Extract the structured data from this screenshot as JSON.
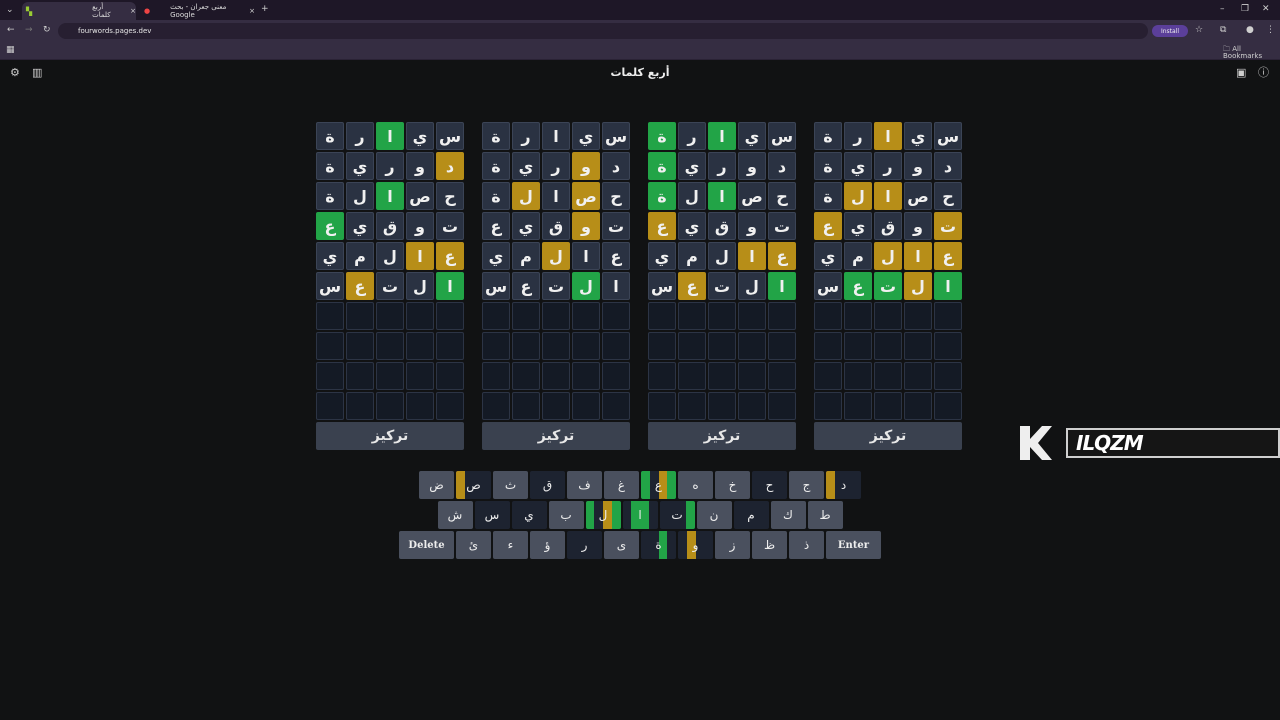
{
  "browser": {
    "tabs": [
      {
        "title": "أربع كلمات",
        "active": true
      },
      {
        "title": "معنى جعران - بحث Google",
        "active": false
      }
    ],
    "url": "fourwords.pages.dev",
    "install_label": "Install",
    "bookmarks_label": "All Bookmarks"
  },
  "app": {
    "title": "أربع كلمات",
    "focus_label": "تركيز"
  },
  "colors": {
    "green": "#22a447",
    "yellow": "#b78e18",
    "tile": "#2a3242",
    "empty": "#141a25"
  },
  "guesses": [
    [
      "ة",
      "ر",
      "ا",
      "ي",
      "س"
    ],
    [
      "ة",
      "ي",
      "ر",
      "و",
      "د"
    ],
    [
      "ة",
      "ل",
      "ا",
      "ص",
      "ح"
    ],
    [
      "ع",
      "ي",
      "ق",
      "و",
      "ت"
    ],
    [
      "ي",
      "م",
      "ل",
      "ا",
      "ع"
    ],
    [
      "س",
      "ع",
      "ت",
      "ل",
      "ا"
    ]
  ],
  "boards": [
    {
      "states": [
        "__g__",
        "____y",
        "__g__",
        "g____",
        "___yy",
        "_y__g"
      ]
    },
    {
      "states": [
        "_____",
        "___y_",
        "_y_y_",
        "___y_",
        "__y__",
        "___g_"
      ]
    },
    {
      "states": [
        "g_g__",
        "g____",
        "g_g__",
        "y____",
        "___yy",
        "_y__g"
      ]
    },
    {
      "states": [
        "__y__",
        "_____",
        "_yy__",
        "y___y",
        "__yyy",
        "_ggyg"
      ]
    }
  ],
  "total_rows": 10,
  "keyboard": [
    [
      {
        "k": "ض"
      },
      {
        "k": "ص",
        "s": "yddd"
      },
      {
        "k": "ث"
      },
      {
        "k": "ق",
        "s": "dddd"
      },
      {
        "k": "ف"
      },
      {
        "k": "غ"
      },
      {
        "k": "ع",
        "s": "gdyg"
      },
      {
        "k": "ه"
      },
      {
        "k": "خ"
      },
      {
        "k": "ح",
        "s": "dddd"
      },
      {
        "k": "ج"
      },
      {
        "k": "د",
        "s": "yddd"
      }
    ],
    [
      {
        "k": "ش"
      },
      {
        "k": "س",
        "s": "dddd"
      },
      {
        "k": "ي",
        "s": "dddd"
      },
      {
        "k": "ب"
      },
      {
        "k": "ل",
        "s": "gdyg"
      },
      {
        "k": "ا",
        "s": "dggd"
      },
      {
        "k": "ت",
        "s": "dddg"
      },
      {
        "k": "ن"
      },
      {
        "k": "م",
        "s": "dddd"
      },
      {
        "k": "ك"
      },
      {
        "k": "ط"
      }
    ],
    [
      {
        "k": "Delete",
        "wide": true
      },
      {
        "k": "ئ"
      },
      {
        "k": "ء"
      },
      {
        "k": "ؤ"
      },
      {
        "k": "ر",
        "s": "dddd"
      },
      {
        "k": "ى"
      },
      {
        "k": "ة",
        "s": "ddgd"
      },
      {
        "k": "و",
        "s": "dydd"
      },
      {
        "k": "ز"
      },
      {
        "k": "ظ"
      },
      {
        "k": "ذ"
      },
      {
        "k": "Enter",
        "wide": true
      }
    ]
  ],
  "watermark": {
    "text": "ILQZM"
  }
}
